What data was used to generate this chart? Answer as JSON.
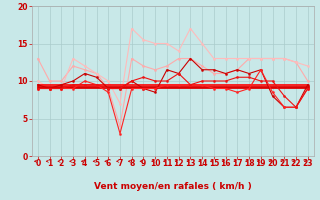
{
  "bg_color": "#c8e8e8",
  "grid_color": "#aacccc",
  "xlabel": "Vent moyen/en rafales ( km/h )",
  "xlabel_color": "#cc0000",
  "xlabel_fontsize": 6.5,
  "tick_color": "#cc0000",
  "tick_fontsize": 5.5,
  "xlim": [
    -0.5,
    23.5
  ],
  "ylim": [
    0,
    20
  ],
  "yticks": [
    0,
    5,
    10,
    15,
    20
  ],
  "xticks": [
    0,
    1,
    2,
    3,
    4,
    5,
    6,
    7,
    8,
    9,
    10,
    11,
    12,
    13,
    14,
    15,
    16,
    17,
    18,
    19,
    20,
    21,
    22,
    23
  ],
  "lines": [
    {
      "x": [
        0,
        1,
        2,
        3,
        4,
        5,
        6,
        7,
        8,
        9,
        10,
        11,
        12,
        13,
        14,
        15,
        16,
        17,
        18,
        19,
        20,
        21,
        22,
        23
      ],
      "y": [
        13,
        10,
        10,
        12,
        11.5,
        11,
        9,
        4,
        13,
        12,
        11.5,
        12,
        13,
        13,
        12,
        11,
        11,
        11.5,
        13,
        13,
        13,
        13,
        12.5,
        10
      ],
      "color": "#ffaaaa",
      "lw": 0.8,
      "marker": "o",
      "ms": 1.5
    },
    {
      "x": [
        0,
        1,
        2,
        3,
        4,
        5,
        6,
        7,
        8,
        9,
        10,
        11,
        12,
        13,
        14,
        15,
        16,
        17,
        18,
        19,
        20,
        21,
        22,
        23
      ],
      "y": [
        10,
        9,
        9,
        13,
        12,
        11,
        10,
        7,
        17,
        15.5,
        15,
        15,
        14,
        17,
        15,
        13,
        13,
        13,
        13,
        13,
        13,
        13,
        12.5,
        12
      ],
      "color": "#ffbbbb",
      "lw": 0.8,
      "marker": "o",
      "ms": 1.5
    },
    {
      "x": [
        0,
        1,
        2,
        3,
        4,
        5,
        6,
        7,
        8,
        9,
        10,
        11,
        12,
        13,
        14,
        15,
        16,
        17,
        18,
        19,
        20,
        21,
        22,
        23
      ],
      "y": [
        9.2,
        9.2,
        9.2,
        9.2,
        9.2,
        9.2,
        9.2,
        9.2,
        9.2,
        9.2,
        9.2,
        9.2,
        9.2,
        9.2,
        9.2,
        9.2,
        9.2,
        9.2,
        9.2,
        9.2,
        9.2,
        9.2,
        9.2,
        9.2
      ],
      "color": "#dd0000",
      "lw": 2.0,
      "marker": null,
      "ms": 0
    },
    {
      "x": [
        0,
        1,
        2,
        3,
        4,
        5,
        6,
        7,
        8,
        9,
        10,
        11,
        12,
        13,
        14,
        15,
        16,
        17,
        18,
        19,
        20,
        21,
        22,
        23
      ],
      "y": [
        9.5,
        9.5,
        9.5,
        9.5,
        9.5,
        9.5,
        9.5,
        9.5,
        9.5,
        9.5,
        9.5,
        9.5,
        9.5,
        9.5,
        9.5,
        9.5,
        9.5,
        9.5,
        9.5,
        9.5,
        9.5,
        9.5,
        9.5,
        9.5
      ],
      "color": "#ff0000",
      "lw": 1.2,
      "marker": null,
      "ms": 0
    },
    {
      "x": [
        0,
        1,
        2,
        3,
        4,
        5,
        6,
        7,
        8,
        9,
        10,
        11,
        12,
        13,
        14,
        15,
        16,
        17,
        18,
        19,
        20,
        21,
        22,
        23
      ],
      "y": [
        9.5,
        9,
        9.5,
        10,
        11,
        10.5,
        9,
        9,
        10,
        9,
        8.5,
        11.5,
        11,
        13,
        11.5,
        11.5,
        11,
        11.5,
        11,
        11.5,
        8,
        6.5,
        6.5,
        9.5
      ],
      "color": "#cc0000",
      "lw": 0.8,
      "marker": "o",
      "ms": 1.5
    },
    {
      "x": [
        0,
        1,
        2,
        3,
        4,
        5,
        6,
        7,
        8,
        9,
        10,
        11,
        12,
        13,
        14,
        15,
        16,
        17,
        18,
        19,
        20,
        21,
        22,
        23
      ],
      "y": [
        9,
        9,
        9,
        9,
        10,
        9.5,
        8.5,
        3,
        9,
        9,
        9,
        9.5,
        9.5,
        9.5,
        9.5,
        9,
        9,
        8.5,
        9,
        11.5,
        8.5,
        6.5,
        6.5,
        9
      ],
      "color": "#ff2222",
      "lw": 0.8,
      "marker": "o",
      "ms": 1.5
    },
    {
      "x": [
        0,
        1,
        2,
        3,
        4,
        5,
        6,
        7,
        8,
        9,
        10,
        11,
        12,
        13,
        14,
        15,
        16,
        17,
        18,
        19,
        20,
        21,
        22,
        23
      ],
      "y": [
        9,
        9,
        9,
        9.5,
        9.5,
        9.5,
        9,
        9,
        10,
        10.5,
        10,
        10,
        11,
        9.5,
        10,
        10,
        10,
        10.5,
        10.5,
        10,
        10,
        8,
        6.5,
        9
      ],
      "color": "#ee1111",
      "lw": 0.8,
      "marker": "o",
      "ms": 1.5
    }
  ]
}
